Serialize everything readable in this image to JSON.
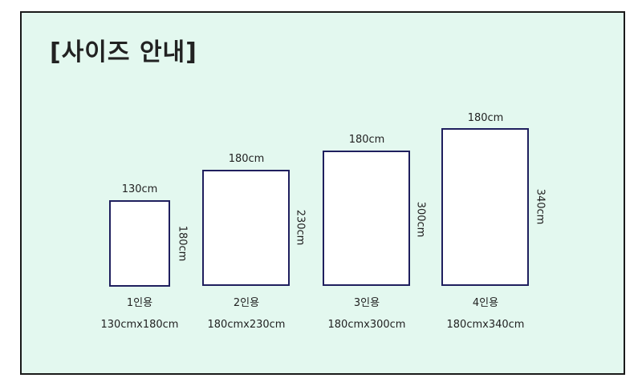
{
  "title": "[사이즈 안내]",
  "colors": {
    "background": "#e3f8ef",
    "rect_border": "#1f1f5e",
    "frame_border": "#1a1a1a"
  },
  "sizes": [
    {
      "width_label": "130cm",
      "height_label": "180cm",
      "persons": "1인용",
      "spec": "130cmx180cm"
    },
    {
      "width_label": "180cm",
      "height_label": "230cm",
      "persons": "2인용",
      "spec": "180cmx230cm"
    },
    {
      "width_label": "180cm",
      "height_label": "300cm",
      "persons": "3인용",
      "spec": "180cmx300cm"
    },
    {
      "width_label": "180cm",
      "height_label": "340cm",
      "persons": "4인용",
      "spec": "180cmx340cm"
    }
  ]
}
